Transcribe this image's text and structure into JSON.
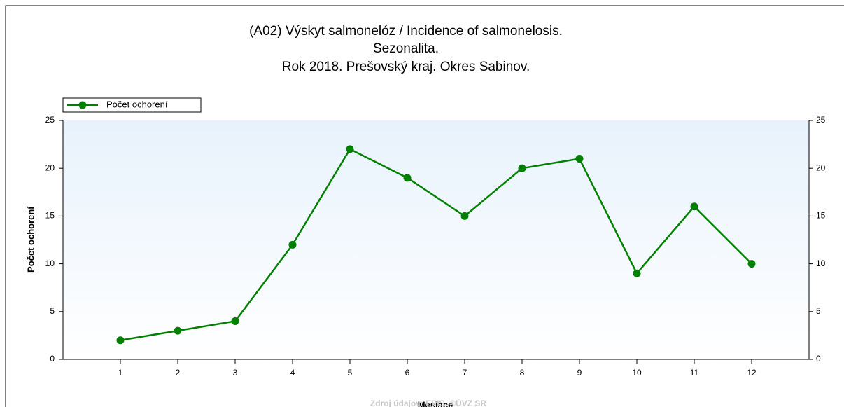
{
  "chart_data": {
    "type": "line",
    "title": [
      "(A02) Výskyt salmonelóz / Incidence of salmonelosis.",
      "Sezonalita.",
      "Rok 2018. Prešovský kraj. Okres Sabinov."
    ],
    "x": [
      1,
      2,
      3,
      4,
      5,
      6,
      7,
      8,
      9,
      10,
      11,
      12
    ],
    "series": [
      {
        "name": "Počet ochorení",
        "color": "#008000",
        "values": [
          2,
          3,
          4,
          12,
          22,
          19,
          15,
          20,
          21,
          9,
          16,
          10
        ]
      }
    ],
    "xlim": [
      0,
      13
    ],
    "xticks": [
      1,
      2,
      3,
      4,
      5,
      6,
      7,
      8,
      9,
      10,
      11,
      12
    ],
    "ylim": [
      0,
      25
    ],
    "yticks": [
      0,
      5,
      10,
      15,
      20,
      25
    ],
    "y2lim": [
      0,
      25
    ],
    "y2ticks": [
      0,
      5,
      10,
      15,
      20,
      25
    ],
    "xlabel": "Mesiace",
    "ylabel": "Počet ochorení",
    "legend": "top-left",
    "source": "Zdroj údajov: EPIS, ©ÚVZ SR"
  }
}
